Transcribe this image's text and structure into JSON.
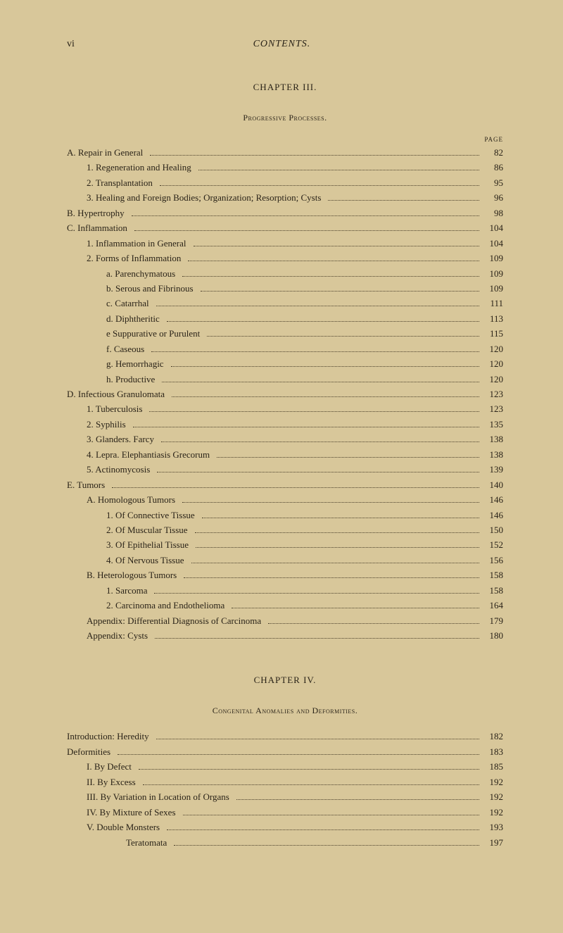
{
  "header": {
    "pageNum": "vi",
    "title": "CONTENTS."
  },
  "chapter3": {
    "heading": "CHAPTER III.",
    "sectionHeading": "Progressive Processes.",
    "pageLabel": "PAGE",
    "entries": [
      {
        "indent": 0,
        "label": "A. Repair in General",
        "page": "82"
      },
      {
        "indent": 1,
        "label": "1. Regeneration and Healing",
        "page": "86"
      },
      {
        "indent": 1,
        "label": "2. Transplantation",
        "page": "95"
      },
      {
        "indent": 1,
        "label": "3. Healing and Foreign Bodies; Organization; Resorption; Cysts",
        "page": "96"
      },
      {
        "indent": 0,
        "label": "B. Hypertrophy",
        "page": "98"
      },
      {
        "indent": 0,
        "label": "C. Inflammation",
        "page": "104"
      },
      {
        "indent": 1,
        "label": "1. Inflammation in General",
        "page": "104"
      },
      {
        "indent": 1,
        "label": "2. Forms of Inflammation",
        "page": "109"
      },
      {
        "indent": 2,
        "label": "a. Parenchymatous",
        "page": "109"
      },
      {
        "indent": 2,
        "label": "b. Serous and Fibrinous",
        "page": "109"
      },
      {
        "indent": 2,
        "label": "c. Catarrhal",
        "page": "111"
      },
      {
        "indent": 2,
        "label": "d. Diphtheritic",
        "page": "113"
      },
      {
        "indent": 2,
        "label": "e  Suppurative or Purulent",
        "page": "115"
      },
      {
        "indent": 2,
        "label": "f. Caseous",
        "page": "120"
      },
      {
        "indent": 2,
        "label": "g. Hemorrhagic",
        "page": "120"
      },
      {
        "indent": 2,
        "label": "h. Productive",
        "page": "120"
      },
      {
        "indent": 0,
        "label": "D. Infectious Granulomata",
        "page": "123"
      },
      {
        "indent": 1,
        "label": "1. Tuberculosis",
        "page": "123"
      },
      {
        "indent": 1,
        "label": "2. Syphilis",
        "page": "135"
      },
      {
        "indent": 1,
        "label": "3. Glanders.  Farcy",
        "page": "138"
      },
      {
        "indent": 1,
        "label": "4. Lepra.  Elephantiasis Grecorum",
        "page": "138"
      },
      {
        "indent": 1,
        "label": "5. Actinomycosis",
        "page": "139"
      },
      {
        "indent": 0,
        "label": "E. Tumors",
        "page": "140"
      },
      {
        "indent": 1,
        "label": "A. Homologous Tumors",
        "page": "146"
      },
      {
        "indent": 2,
        "label": "1. Of Connective Tissue",
        "page": "146"
      },
      {
        "indent": 2,
        "label": "2. Of Muscular Tissue",
        "page": "150"
      },
      {
        "indent": 2,
        "label": "3. Of Epithelial Tissue",
        "page": "152"
      },
      {
        "indent": 2,
        "label": "4. Of Nervous Tissue",
        "page": "156"
      },
      {
        "indent": 1,
        "label": "B. Heterologous Tumors",
        "page": "158"
      },
      {
        "indent": 2,
        "label": "1. Sarcoma",
        "page": "158"
      },
      {
        "indent": 2,
        "label": "2. Carcinoma and Endothelioma",
        "page": "164"
      },
      {
        "indent": 1,
        "label": "Appendix: Differential Diagnosis of Carcinoma",
        "page": "179"
      },
      {
        "indent": 1,
        "label": "Appendix: Cysts",
        "page": "180"
      }
    ]
  },
  "chapter4": {
    "heading": "CHAPTER IV.",
    "sectionHeading": "Congenital Anomalies and Deformities.",
    "entries": [
      {
        "indent": 0,
        "label": "Introduction: Heredity",
        "page": "182"
      },
      {
        "indent": 0,
        "label": "Deformities",
        "page": "183"
      },
      {
        "indent": 1,
        "label": "I. By Defect",
        "page": "185"
      },
      {
        "indent": 1,
        "label": "II. By Excess",
        "page": "192"
      },
      {
        "indent": 1,
        "label": "III. By Variation in Location of Organs",
        "page": "192"
      },
      {
        "indent": 1,
        "label": "IV. By Mixture of Sexes",
        "page": "192"
      },
      {
        "indent": 1,
        "label": "V. Double Monsters",
        "page": "193"
      },
      {
        "indent": 3,
        "label": "Teratomata",
        "page": "197"
      }
    ]
  }
}
